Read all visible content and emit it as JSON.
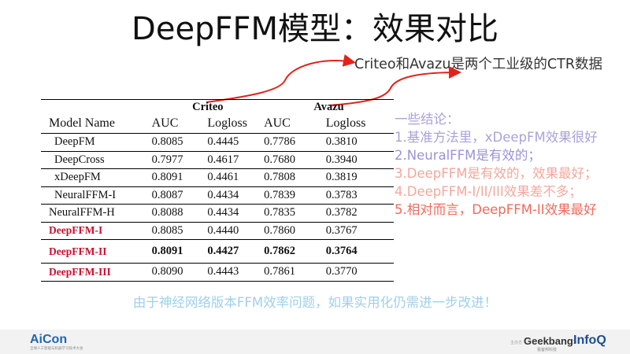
{
  "title": "DeepFFM模型：效果对比",
  "top_note": "Criteo和Avazu是两个工业级的CTR数据",
  "table": {
    "groups": [
      "Criteo",
      "Avazu"
    ],
    "headers": [
      "Model Name",
      "AUC",
      "Logloss",
      "AUC",
      "Logloss"
    ],
    "rows": [
      {
        "name": "DeepFM",
        "v1": "0.8085",
        "v2": "0.4445",
        "v3": "0.7786",
        "v4": "0.3810"
      },
      {
        "name": "DeepCross",
        "v1": "0.7977",
        "v2": "0.4617",
        "v3": "0.7680",
        "v4": "0.3940"
      },
      {
        "name": "xDeepFM",
        "v1": "0.8091",
        "v2": "0.4461",
        "v3": "0.7808",
        "v4": "0.3819"
      },
      {
        "name": "NeuralFFM-I",
        "v1": "0.8087",
        "v2": "0.4434",
        "v3": "0.7839",
        "v4": "0.3783"
      },
      {
        "name": "NeuralFFM-H",
        "v1": "0.8088",
        "v2": "0.4434",
        "v3": "0.7835",
        "v4": "0.3782"
      },
      {
        "name": "DeepFFM-I",
        "v1": "0.8085",
        "v2": "0.4440",
        "v3": "0.7860",
        "v4": "0.3767"
      },
      {
        "name": "DeepFFM-II",
        "v1": "0.8091",
        "v2": "0.4427",
        "v3": "0.7862",
        "v4": "0.3764"
      },
      {
        "name": "DeepFFM-III",
        "v1": "0.8090",
        "v2": "0.4443",
        "v3": "0.7861",
        "v4": "0.3770"
      }
    ]
  },
  "conclusions": {
    "heading": "一些结论：",
    "items": [
      "1.基准方法里，xDeepFM效果很好",
      "2.NeuralFFM是有效的；",
      "3.DeepFFM是有效的，效果最好；",
      "4.DeepFFM-I/II/III效果差不多；",
      "5.相对而言，DeepFFM-II效果最好"
    ]
  },
  "conclusion_colors": [
    "#aaa1d8",
    "#aaa1d8",
    "#9b93d6",
    "#f2a79b",
    "#f3a99d",
    "#ef6b5c"
  ],
  "bottom_note": "由于神经网络版本FFM效率问题，如果实用化仍需进一步改进！",
  "footer": {
    "left_logo": "AiCon",
    "left_logo_sub": "全球人工智能与机器学习技术大会",
    "sponsor_label": "主办方",
    "geek_logo": "Geekbang›",
    "geek_logo_sub": "极客邦科技",
    "infoq_logo": "InfoQ"
  },
  "arrow_color": "#e2231a"
}
